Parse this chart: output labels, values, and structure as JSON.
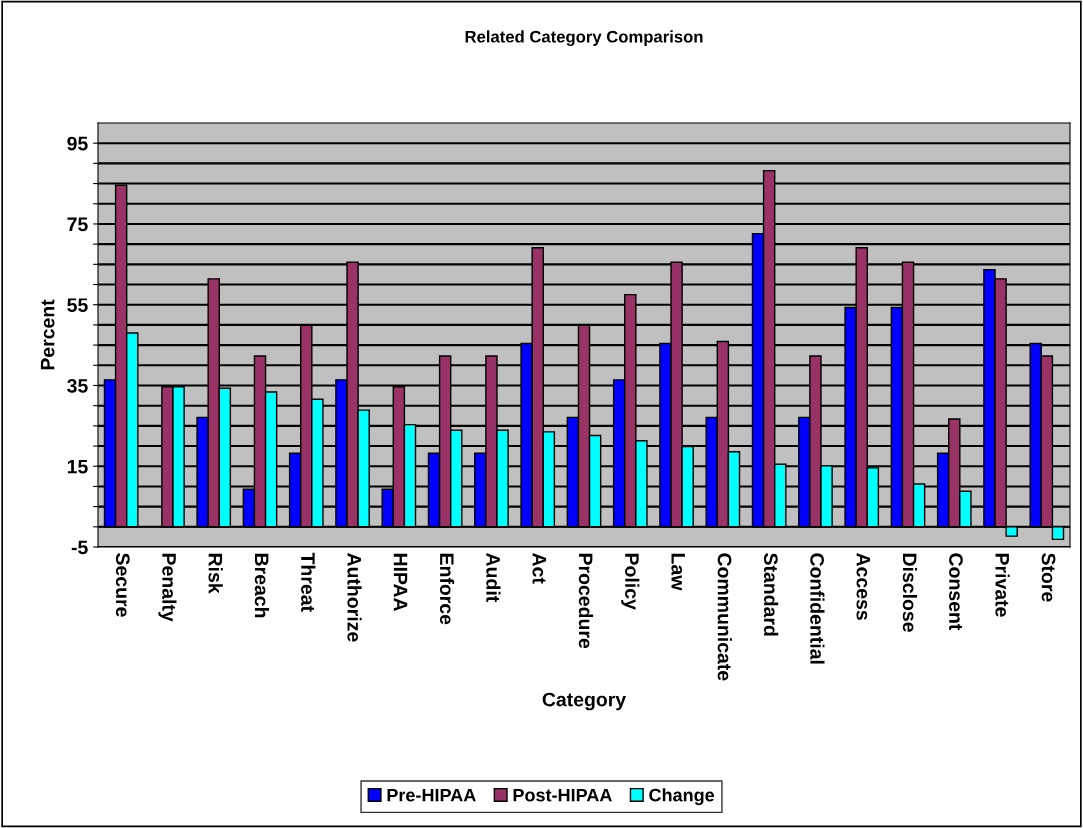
{
  "chart_data": {
    "type": "bar",
    "title": "Related Category Comparison",
    "xlabel": "Category",
    "ylabel": "Percent",
    "categories": [
      "Secure",
      "Penalty",
      "Risk",
      "Breach",
      "Threat",
      "Authorize",
      "HIPAA",
      "Enforce",
      "Audit",
      "Act",
      "Procedure",
      "Policy",
      "Law",
      "Communicate",
      "Standard",
      "Confidential",
      "Access",
      "Disclose",
      "Consent",
      "Private",
      "Store"
    ],
    "series": [
      {
        "name": "Pre-HIPAA",
        "color": "#0000ff",
        "values": [
          36.4,
          null,
          27.1,
          9.3,
          18.2,
          36.4,
          9.3,
          18.2,
          18.2,
          45.4,
          27.1,
          36.4,
          45.4,
          27.1,
          72.6,
          27.1,
          54.3,
          54.3,
          18.2,
          63.7,
          45.4
        ]
      },
      {
        "name": "Post-HIPAA",
        "color": "#993366",
        "values": [
          84.6,
          34.7,
          61.4,
          42.3,
          49.9,
          65.5,
          34.7,
          42.3,
          42.3,
          69.1,
          49.9,
          57.5,
          65.5,
          45.9,
          88.2,
          42.3,
          69.1,
          65.5,
          26.7,
          61.4,
          42.3
        ]
      },
      {
        "name": "Change",
        "color": "#00ffff",
        "values": [
          48,
          34.7,
          34.3,
          33.4,
          31.6,
          28.9,
          25.3,
          23.9,
          23.9,
          23.5,
          22.6,
          21.3,
          19.9,
          18.6,
          15.5,
          15.1,
          14.6,
          10.6,
          8.8,
          -2.3,
          -3.1
        ]
      }
    ],
    "ylim": [
      -5,
      100
    ],
    "yticks": [
      -5,
      {
        "value": 0,
        "label": null
      },
      {
        "value": 5,
        "label": null
      },
      {
        "value": 10,
        "label": null
      },
      15,
      {
        "value": 20,
        "label": null
      },
      {
        "value": 25,
        "label": null
      },
      {
        "value": 30,
        "label": null
      },
      35,
      {
        "value": 40,
        "label": null
      },
      {
        "value": 45,
        "label": null
      },
      {
        "value": 50,
        "label": null
      },
      55,
      {
        "value": 60,
        "label": null
      },
      {
        "value": 65,
        "label": null
      },
      {
        "value": 70,
        "label": null
      },
      75,
      {
        "value": 80,
        "label": null
      },
      {
        "value": 85,
        "label": null
      },
      {
        "value": 90,
        "label": null
      },
      95
    ],
    "grid": "y",
    "legend": "bottom"
  }
}
